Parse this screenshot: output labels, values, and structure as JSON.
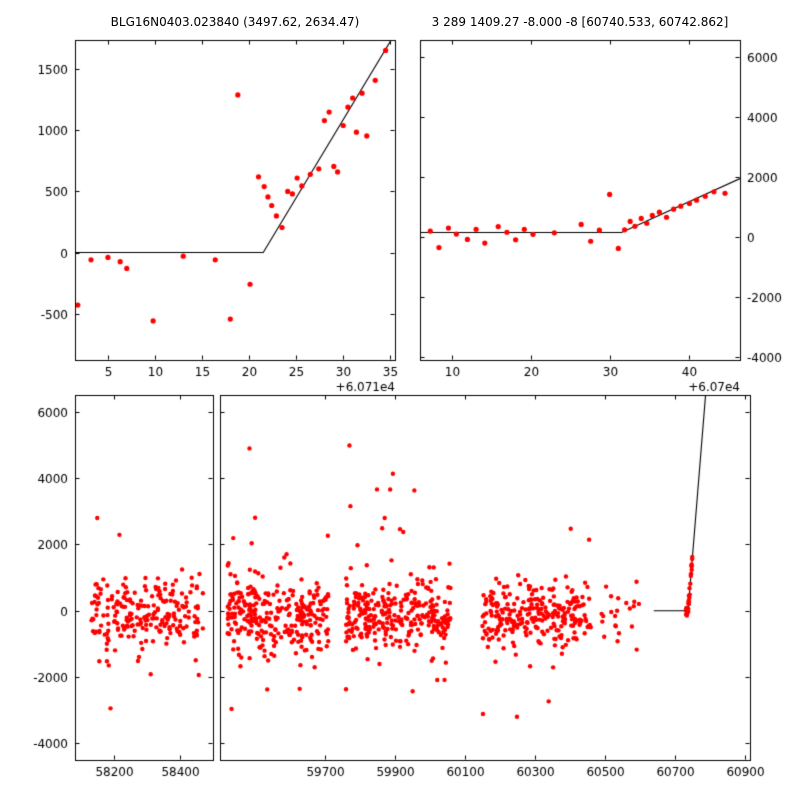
{
  "figure": {
    "background": "#ffffff",
    "marker_color": "#ff0000",
    "line_color": "#000000",
    "axis_color": "#000000",
    "titles": {
      "left": "BLG16N0403.023840 (3497.62, 2634.47)",
      "right": "3 289 1409.27 -8.000 -8 [60740.533, 60742.862]"
    }
  },
  "chart_data": [
    {
      "id": "top_left",
      "type": "scatter",
      "title": "BLG16N0403.023840 (3497.62, 2634.47)",
      "xlim": [
        1.5,
        35.5
      ],
      "ylim": [
        -880,
        1740
      ],
      "xticks": [
        5,
        10,
        15,
        20,
        25,
        30,
        35
      ],
      "yticks": [
        -500,
        0,
        500,
        1000,
        1500
      ],
      "y_label_side": "left",
      "x_offset_label": "+6.071e4",
      "marker_color": "#ff0000",
      "line_color": "#000000",
      "model_line": {
        "baseline": 0,
        "break_x": 21.5,
        "slope": 128
      },
      "points": [
        [
          1.8,
          -430
        ],
        [
          3.2,
          -60
        ],
        [
          5.0,
          -40
        ],
        [
          6.3,
          -75
        ],
        [
          7.0,
          -130
        ],
        [
          9.8,
          -560
        ],
        [
          13.0,
          -30
        ],
        [
          16.4,
          -60
        ],
        [
          18.0,
          -545
        ],
        [
          18.8,
          1290
        ],
        [
          20.1,
          -260
        ],
        [
          21.0,
          620
        ],
        [
          21.6,
          540
        ],
        [
          22.0,
          455
        ],
        [
          22.4,
          385
        ],
        [
          22.9,
          300
        ],
        [
          23.5,
          205
        ],
        [
          24.1,
          500
        ],
        [
          24.6,
          480
        ],
        [
          25.1,
          610
        ],
        [
          25.6,
          545
        ],
        [
          26.5,
          640
        ],
        [
          27.4,
          685
        ],
        [
          28.0,
          1080
        ],
        [
          28.5,
          1150
        ],
        [
          29.0,
          705
        ],
        [
          29.4,
          660
        ],
        [
          30.0,
          1040
        ],
        [
          30.5,
          1190
        ],
        [
          31.0,
          1265
        ],
        [
          31.4,
          985
        ],
        [
          32.0,
          1305
        ],
        [
          32.5,
          955
        ],
        [
          33.4,
          1410
        ],
        [
          34.5,
          1655
        ]
      ]
    },
    {
      "id": "top_right",
      "type": "scatter",
      "title": "3 289 1409.27 -8.000 -8 [60740.533, 60742.862]",
      "xlim": [
        6,
        46.5
      ],
      "ylim": [
        -4100,
        6570
      ],
      "xticks": [
        10,
        20,
        30,
        40
      ],
      "yticks": [
        -4000,
        -2000,
        0,
        2000,
        4000,
        6000
      ],
      "y_label_side": "right",
      "x_offset_label": "+6.07e4",
      "marker_color": "#ff0000",
      "line_color": "#000000",
      "model_line": {
        "baseline": 150,
        "break_x": 31.5,
        "slope": 120
      },
      "points": [
        [
          7.3,
          200
        ],
        [
          8.4,
          -350
        ],
        [
          9.6,
          300
        ],
        [
          10.6,
          100
        ],
        [
          12.0,
          -80
        ],
        [
          13.1,
          260
        ],
        [
          14.2,
          -200
        ],
        [
          15.9,
          350
        ],
        [
          17.0,
          160
        ],
        [
          18.1,
          -90
        ],
        [
          19.2,
          260
        ],
        [
          20.3,
          90
        ],
        [
          23.0,
          140
        ],
        [
          26.4,
          420
        ],
        [
          27.6,
          -140
        ],
        [
          28.7,
          230
        ],
        [
          30.0,
          1420
        ],
        [
          31.1,
          -380
        ],
        [
          31.9,
          240
        ],
        [
          32.6,
          520
        ],
        [
          33.2,
          360
        ],
        [
          34.0,
          620
        ],
        [
          34.7,
          460
        ],
        [
          35.4,
          720
        ],
        [
          36.3,
          830
        ],
        [
          37.2,
          660
        ],
        [
          38.1,
          930
        ],
        [
          39.0,
          1030
        ],
        [
          40.1,
          1120
        ],
        [
          41.0,
          1230
        ],
        [
          42.1,
          1360
        ],
        [
          43.2,
          1510
        ],
        [
          44.6,
          1460
        ]
      ]
    },
    {
      "id": "bottom",
      "type": "scatter_broken_x",
      "ylim": [
        -4500,
        6500
      ],
      "yticks": [
        -4000,
        -2000,
        0,
        2000,
        4000,
        6000
      ],
      "panels": [
        {
          "xlim": [
            58080,
            58500
          ],
          "xticks": [
            58200,
            58400
          ]
        },
        {
          "xlim": [
            59400,
            60915
          ],
          "xticks": [
            59700,
            59900,
            60100,
            60300,
            60500,
            60700,
            60900
          ]
        }
      ],
      "marker_color": "#ff0000",
      "line_color": "#000000",
      "model_line": {
        "baseline": 0,
        "flat_from": 60640,
        "break_x": 60738,
        "slope": 130
      },
      "random_seed": 12,
      "point_clusters": [
        {
          "x_range": [
            58130,
            58470
          ],
          "n": 230,
          "y_center": -100,
          "y_sigma": 520,
          "tail_frac": 0.055,
          "tail_sigma": 2100
        },
        {
          "x_range": [
            59420,
            59710
          ],
          "n": 300,
          "y_center": -150,
          "y_sigma": 540,
          "tail_frac": 0.06,
          "tail_sigma": 2200
        },
        {
          "x_range": [
            59760,
            60060
          ],
          "n": 300,
          "y_center": -150,
          "y_sigma": 540,
          "tail_frac": 0.06,
          "tail_sigma": 2200
        },
        {
          "x_range": [
            60150,
            60460
          ],
          "n": 270,
          "y_center": -150,
          "y_sigma": 500,
          "tail_frac": 0.05,
          "tail_sigma": 2000
        },
        {
          "x_range": [
            60490,
            60600
          ],
          "n": 22,
          "y_center": -60,
          "y_sigma": 420,
          "tail_frac": 0.1,
          "tail_sigma": 1800
        }
      ],
      "rise_cluster": {
        "x_range": [
          60731,
          60750
        ],
        "n": 32,
        "y_sigma": 110
      }
    }
  ]
}
